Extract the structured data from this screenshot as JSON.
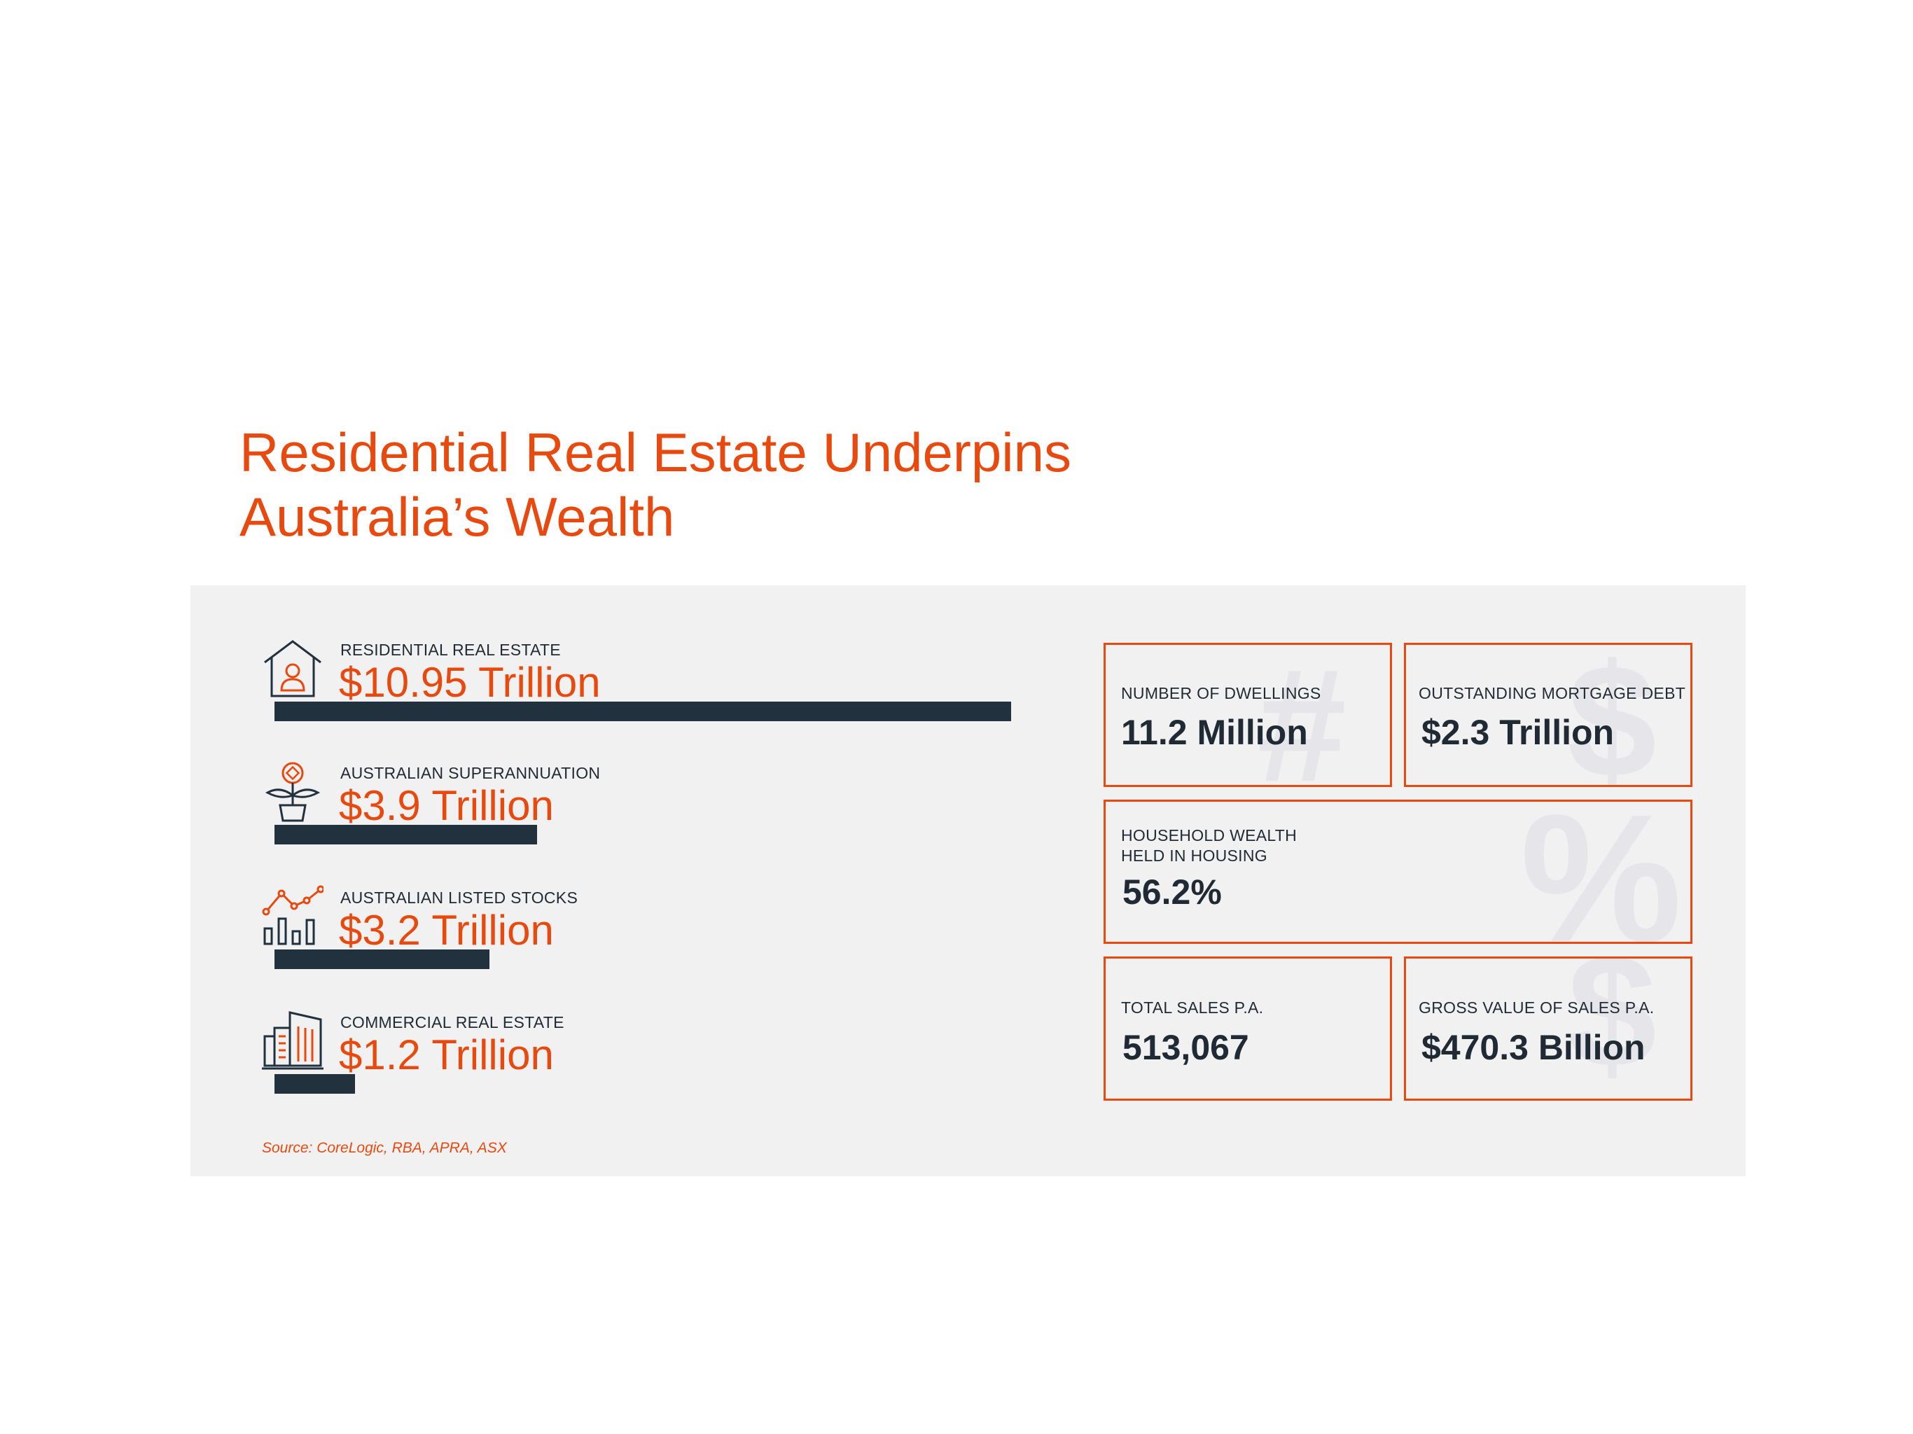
{
  "title": {
    "line1": "Residential Real Estate Underpins",
    "line2": "Australia’s Wealth"
  },
  "colors": {
    "accent": "#e8490f",
    "dark": "#21313e",
    "panel": "#f1f1f1"
  },
  "chart_data": {
    "type": "bar",
    "orientation": "horizontal",
    "categories": [
      "RESIDENTIAL REAL ESTATE",
      "AUSTRALIAN SUPERANNUATION",
      "AUSTRALIAN LISTED STOCKS",
      "COMMERCIAL REAL ESTATE"
    ],
    "values": [
      10.95,
      3.9,
      3.2,
      1.2
    ],
    "value_labels": [
      "$10.95 Trillion",
      "$3.9 Trillion",
      "$3.2 Trillion",
      "$1.2 Trillion"
    ],
    "icons": [
      "house-person-icon",
      "plant-coin-icon",
      "line-bar-chart-icon",
      "office-buildings-icon"
    ],
    "unit": "Trillion",
    "grid": false
  },
  "source": "Source: CoreLogic, RBA, APRA, ASX",
  "stats": {
    "dwellings": {
      "label": "NUMBER OF DWELLINGS",
      "value": "11.2 Million",
      "watermark": "#"
    },
    "mortgage": {
      "label": "OUTSTANDING MORTGAGE DEBT",
      "value": "$2.3 Trillion",
      "watermark": "$"
    },
    "wealth": {
      "label_line1": "HOUSEHOLD WEALTH",
      "label_line2": "HELD IN HOUSING",
      "value": "56.2%",
      "watermark": "%"
    },
    "sales": {
      "label": "TOTAL SALES P.A.",
      "value": "513,067"
    },
    "gross": {
      "label": "GROSS VALUE OF SALES P.A.",
      "value": "$470.3 Billion",
      "watermark": "$"
    }
  }
}
